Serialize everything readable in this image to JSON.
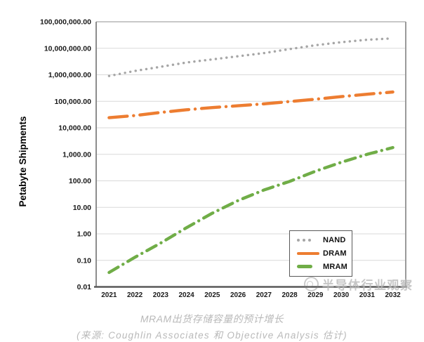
{
  "chart_data": {
    "type": "line",
    "title": "MRAM出货存储容量的预计增长",
    "source": "(来源: Coughlin Associates 和 Objective Analysis 估计)",
    "ylabel": "Petabyte Shipments",
    "xlabel": "",
    "y_scale": "log",
    "ylim": [
      0.01,
      100000000
    ],
    "grid": true,
    "legend_position": "inside-lower-right",
    "categories": [
      "2021",
      "2022",
      "2023",
      "2024",
      "2025",
      "2026",
      "2027",
      "2028",
      "2029",
      "2030",
      "2031",
      "2032"
    ],
    "y_tick_labels": [
      "100,000,000.00",
      "10,000,000.00",
      "1,000,000.00",
      "100,000.00",
      "10,000.00",
      "1,000.00",
      "100.00",
      "10.00",
      "1.00",
      "0.10",
      "0.01"
    ],
    "y_tick_values": [
      100000000,
      10000000,
      1000000,
      100000,
      10000,
      1000,
      100,
      10,
      1,
      0.1,
      0.01
    ],
    "series": [
      {
        "name": "NAND",
        "color": "#A6A6A6",
        "style": "dotted",
        "values": [
          900000,
          1400000,
          2000000,
          2900000,
          3800000,
          5000000,
          6600000,
          9300000,
          13000000,
          17000000,
          21000000,
          23500000
        ]
      },
      {
        "name": "DRAM",
        "color": "#ED7D31",
        "style": "long-dash-dot",
        "values": [
          24000,
          29000,
          38000,
          48000,
          58000,
          68000,
          80000,
          98000,
          120000,
          150000,
          185000,
          225000
        ]
      },
      {
        "name": "MRAM",
        "color": "#70AD47",
        "style": "dash-dot",
        "values": [
          0.035,
          0.13,
          0.45,
          1.7,
          6,
          18,
          45,
          95,
          230,
          500,
          1000,
          1800
        ]
      }
    ]
  },
  "watermark": {
    "text": "半导体行业观察",
    "logo": "cat-face-logo"
  },
  "icons": {
    "legend_dot": "round-dot",
    "legend_line": "line-swatch"
  }
}
